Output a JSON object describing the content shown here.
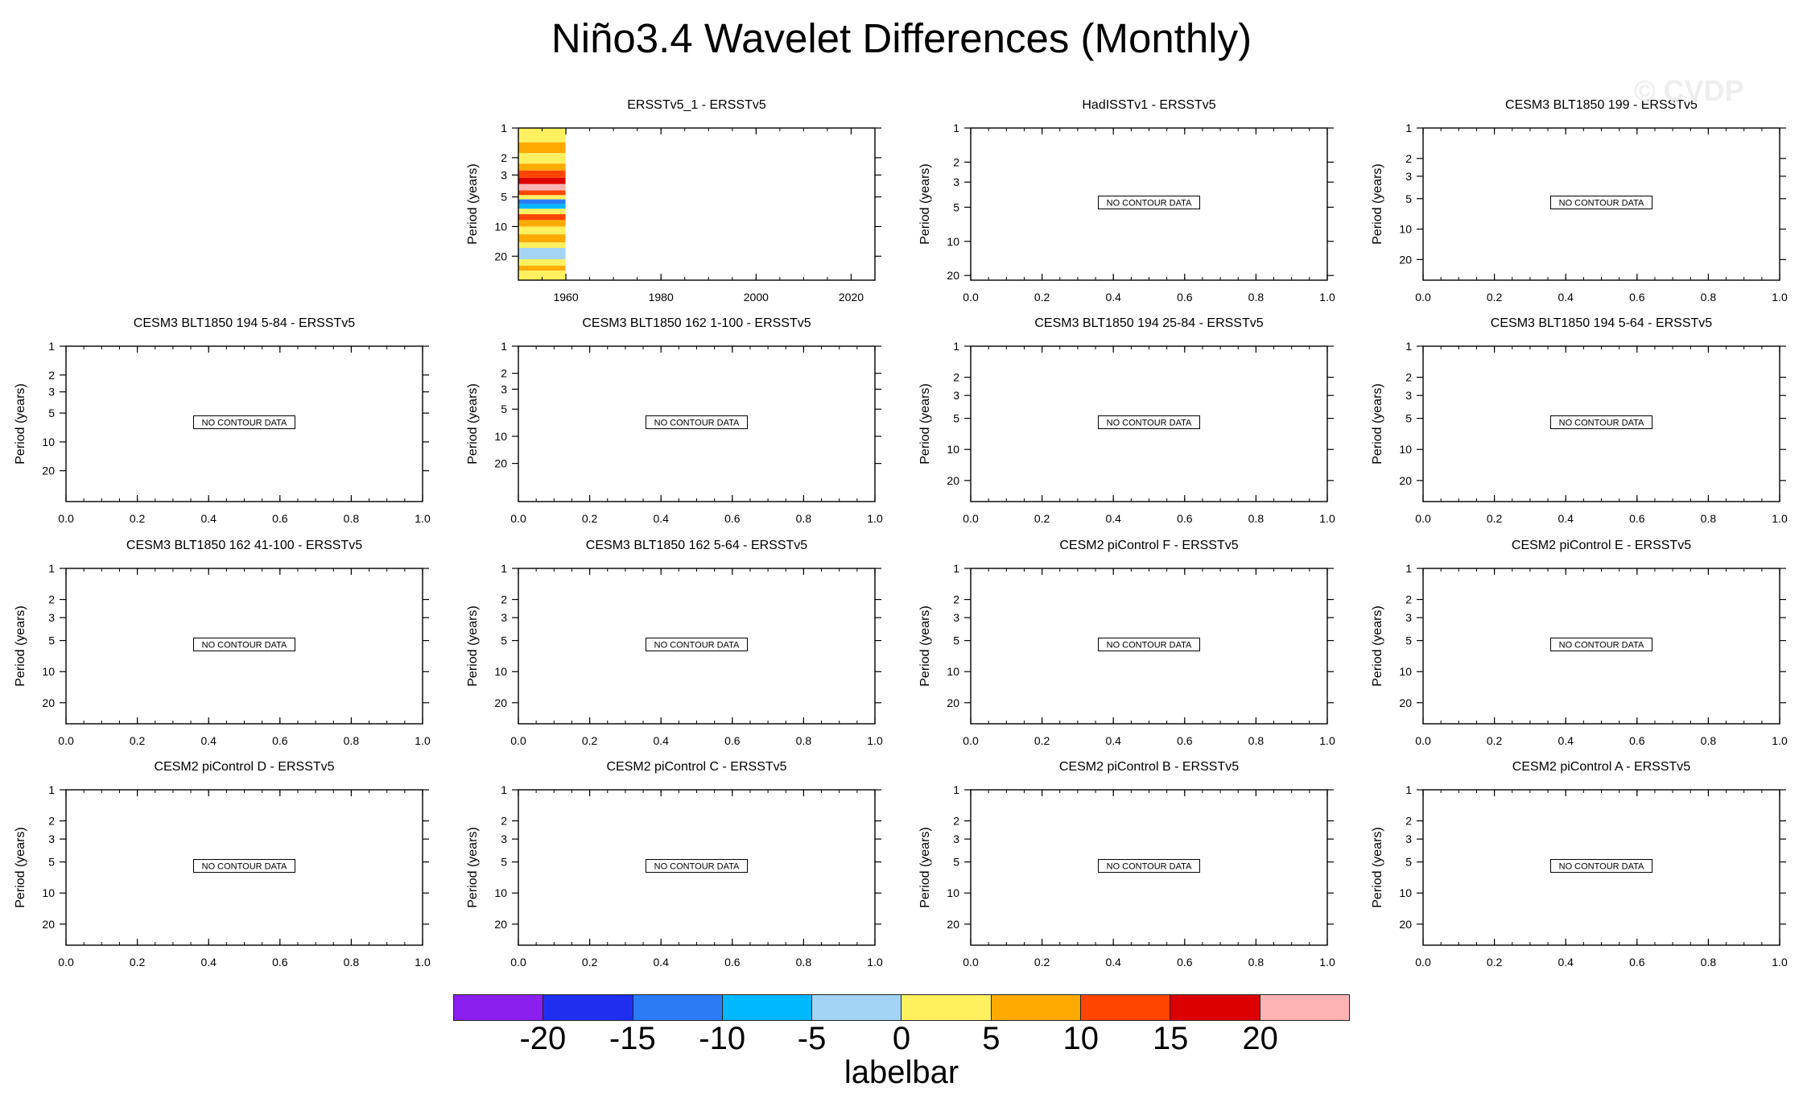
{
  "title": "Niño3.4 Wavelet Differences (Monthly)",
  "watermark": "© CVDP",
  "colorbar": {
    "colors": [
      "#8a1ff0",
      "#1f2ff0",
      "#2b7bf5",
      "#00b8ff",
      "#a3d4f5",
      "#fff060",
      "#ffaa00",
      "#ff4500",
      "#dd0000",
      "#ffb4b4"
    ],
    "tick_labels": [
      "-20",
      "-15",
      "-10",
      "-5",
      "0",
      "5",
      "10",
      "15",
      "20"
    ],
    "label": "labelbar"
  },
  "chart_data": [
    {
      "type": "heatmap",
      "title": "ERSSTv5_1 - ERSSTv5",
      "ylabel": "Period (years)",
      "xlim": [
        1950,
        2025
      ],
      "ylim": [
        1,
        35
      ],
      "x_ticks": [
        "1960",
        "1980",
        "2000",
        "2020"
      ],
      "y_ticks": [
        "1",
        "2",
        "3",
        "5",
        "10",
        "20"
      ],
      "no_data_text": "",
      "bands": [
        {
          "p0": 1.0,
          "p1": 1.4,
          "level": 0
        },
        {
          "p0": 1.4,
          "p1": 1.8,
          "level": 5
        },
        {
          "p0": 1.8,
          "p1": 2.3,
          "level": 0
        },
        {
          "p0": 2.3,
          "p1": 2.7,
          "level": 5
        },
        {
          "p0": 2.7,
          "p1": 3.2,
          "level": 10
        },
        {
          "p0": 3.2,
          "p1": 3.7,
          "level": 15
        },
        {
          "p0": 3.7,
          "p1": 4.3,
          "level": 20
        },
        {
          "p0": 4.3,
          "p1": 4.8,
          "level": 10
        },
        {
          "p0": 4.8,
          "p1": 5.3,
          "level": 0
        },
        {
          "p0": 5.3,
          "p1": 5.9,
          "level": -15
        },
        {
          "p0": 5.9,
          "p1": 6.6,
          "level": -10
        },
        {
          "p0": 6.6,
          "p1": 7.5,
          "level": 0
        },
        {
          "p0": 7.5,
          "p1": 8.6,
          "level": 10
        },
        {
          "p0": 8.6,
          "p1": 10.0,
          "level": 5
        },
        {
          "p0": 10.0,
          "p1": 12.0,
          "level": 0
        },
        {
          "p0": 12.0,
          "p1": 14.5,
          "level": 5
        },
        {
          "p0": 14.5,
          "p1": 16.5,
          "level": 0
        },
        {
          "p0": 16.5,
          "p1": 21.5,
          "level": -5
        },
        {
          "p0": 21.5,
          "p1": 25.0,
          "level": 0
        },
        {
          "p0": 25.0,
          "p1": 28.0,
          "level": 5
        },
        {
          "p0": 28.0,
          "p1": 35.0,
          "level": 0
        }
      ]
    },
    {
      "type": "heatmap",
      "title": "HadISSTv1 - ERSSTv5",
      "ylabel": "Period (years)",
      "xlim": [
        0,
        1
      ],
      "ylim": [
        1,
        22
      ],
      "x_ticks": [
        "0.0",
        "0.2",
        "0.4",
        "0.6",
        "0.8",
        "1.0"
      ],
      "y_ticks": [
        "1",
        "2",
        "3",
        "5",
        "10",
        "20"
      ],
      "no_data_text": "NO CONTOUR DATA"
    },
    {
      "type": "heatmap",
      "title": "CESM3 BLT1850 199 - ERSSTv5",
      "ylabel": "Period (years)",
      "xlim": [
        0,
        1
      ],
      "ylim": [
        1,
        32
      ],
      "x_ticks": [
        "0.0",
        "0.2",
        "0.4",
        "0.6",
        "0.8",
        "1.0"
      ],
      "y_ticks": [
        "1",
        "2",
        "3",
        "5",
        "10",
        "20"
      ],
      "no_data_text": "NO CONTOUR DATA"
    },
    {
      "type": "heatmap",
      "title": "CESM3 BLT1850 194 5-84 - ERSSTv5",
      "ylabel": "Period (years)",
      "xlim": [
        0,
        1
      ],
      "ylim": [
        1,
        42
      ],
      "x_ticks": [
        "0.0",
        "0.2",
        "0.4",
        "0.6",
        "0.8",
        "1.0"
      ],
      "y_ticks": [
        "1",
        "2",
        "3",
        "5",
        "10",
        "20"
      ],
      "no_data_text": "NO CONTOUR DATA"
    },
    {
      "type": "heatmap",
      "title": "CESM3 BLT1850 162 1-100 - ERSSTv5",
      "ylabel": "Period (years)",
      "xlim": [
        0,
        1
      ],
      "ylim": [
        1,
        53
      ],
      "x_ticks": [
        "0.0",
        "0.2",
        "0.4",
        "0.6",
        "0.8",
        "1.0"
      ],
      "y_ticks": [
        "1",
        "2",
        "3",
        "5",
        "10",
        "20"
      ],
      "no_data_text": "NO CONTOUR DATA"
    },
    {
      "type": "heatmap",
      "title": "CESM3 BLT1850 194 25-84 - ERSSTv5",
      "ylabel": "Period (years)",
      "xlim": [
        0,
        1
      ],
      "ylim": [
        1,
        32
      ],
      "x_ticks": [
        "0.0",
        "0.2",
        "0.4",
        "0.6",
        "0.8",
        "1.0"
      ],
      "y_ticks": [
        "1",
        "2",
        "3",
        "5",
        "10",
        "20"
      ],
      "no_data_text": "NO CONTOUR DATA"
    },
    {
      "type": "heatmap",
      "title": "CESM3 BLT1850 194 5-64 - ERSSTv5",
      "ylabel": "Period (years)",
      "xlim": [
        0,
        1
      ],
      "ylim": [
        1,
        32
      ],
      "x_ticks": [
        "0.0",
        "0.2",
        "0.4",
        "0.6",
        "0.8",
        "1.0"
      ],
      "y_ticks": [
        "1",
        "2",
        "3",
        "5",
        "10",
        "20"
      ],
      "no_data_text": "NO CONTOUR DATA"
    },
    {
      "type": "heatmap",
      "title": "CESM3 BLT1850 162 41-100 - ERSSTv5",
      "ylabel": "Period (years)",
      "xlim": [
        0,
        1
      ],
      "ylim": [
        1,
        32
      ],
      "x_ticks": [
        "0.0",
        "0.2",
        "0.4",
        "0.6",
        "0.8",
        "1.0"
      ],
      "y_ticks": [
        "1",
        "2",
        "3",
        "5",
        "10",
        "20"
      ],
      "no_data_text": "NO CONTOUR DATA"
    },
    {
      "type": "heatmap",
      "title": "CESM3 BLT1850 162 5-64 - ERSSTv5",
      "ylabel": "Period (years)",
      "xlim": [
        0,
        1
      ],
      "ylim": [
        1,
        32
      ],
      "x_ticks": [
        "0.0",
        "0.2",
        "0.4",
        "0.6",
        "0.8",
        "1.0"
      ],
      "y_ticks": [
        "1",
        "2",
        "3",
        "5",
        "10",
        "20"
      ],
      "no_data_text": "NO CONTOUR DATA"
    },
    {
      "type": "heatmap",
      "title": "CESM2 piControl F - ERSSTv5",
      "ylabel": "Period (years)",
      "xlim": [
        0,
        1
      ],
      "ylim": [
        1,
        32
      ],
      "x_ticks": [
        "0.0",
        "0.2",
        "0.4",
        "0.6",
        "0.8",
        "1.0"
      ],
      "y_ticks": [
        "1",
        "2",
        "3",
        "5",
        "10",
        "20"
      ],
      "no_data_text": "NO CONTOUR DATA"
    },
    {
      "type": "heatmap",
      "title": "CESM2 piControl E - ERSSTv5",
      "ylabel": "Period (years)",
      "xlim": [
        0,
        1
      ],
      "ylim": [
        1,
        32
      ],
      "x_ticks": [
        "0.0",
        "0.2",
        "0.4",
        "0.6",
        "0.8",
        "1.0"
      ],
      "y_ticks": [
        "1",
        "2",
        "3",
        "5",
        "10",
        "20"
      ],
      "no_data_text": "NO CONTOUR DATA"
    },
    {
      "type": "heatmap",
      "title": "CESM2 piControl D - ERSSTv5",
      "ylabel": "Period (years)",
      "xlim": [
        0,
        1
      ],
      "ylim": [
        1,
        32
      ],
      "x_ticks": [
        "0.0",
        "0.2",
        "0.4",
        "0.6",
        "0.8",
        "1.0"
      ],
      "y_ticks": [
        "1",
        "2",
        "3",
        "5",
        "10",
        "20"
      ],
      "no_data_text": "NO CONTOUR DATA"
    },
    {
      "type": "heatmap",
      "title": "CESM2 piControl C - ERSSTv5",
      "ylabel": "Period (years)",
      "xlim": [
        0,
        1
      ],
      "ylim": [
        1,
        32
      ],
      "x_ticks": [
        "0.0",
        "0.2",
        "0.4",
        "0.6",
        "0.8",
        "1.0"
      ],
      "y_ticks": [
        "1",
        "2",
        "3",
        "5",
        "10",
        "20"
      ],
      "no_data_text": "NO CONTOUR DATA"
    },
    {
      "type": "heatmap",
      "title": "CESM2 piControl B - ERSSTv5",
      "ylabel": "Period (years)",
      "xlim": [
        0,
        1
      ],
      "ylim": [
        1,
        32
      ],
      "x_ticks": [
        "0.0",
        "0.2",
        "0.4",
        "0.6",
        "0.8",
        "1.0"
      ],
      "y_ticks": [
        "1",
        "2",
        "3",
        "5",
        "10",
        "20"
      ],
      "no_data_text": "NO CONTOUR DATA"
    },
    {
      "type": "heatmap",
      "title": "CESM2 piControl A - ERSSTv5",
      "ylabel": "Period (years)",
      "xlim": [
        0,
        1
      ],
      "ylim": [
        1,
        32
      ],
      "x_ticks": [
        "0.0",
        "0.2",
        "0.4",
        "0.6",
        "0.8",
        "1.0"
      ],
      "y_ticks": [
        "1",
        "2",
        "3",
        "5",
        "10",
        "20"
      ],
      "no_data_text": "NO CONTOUR DATA"
    }
  ]
}
